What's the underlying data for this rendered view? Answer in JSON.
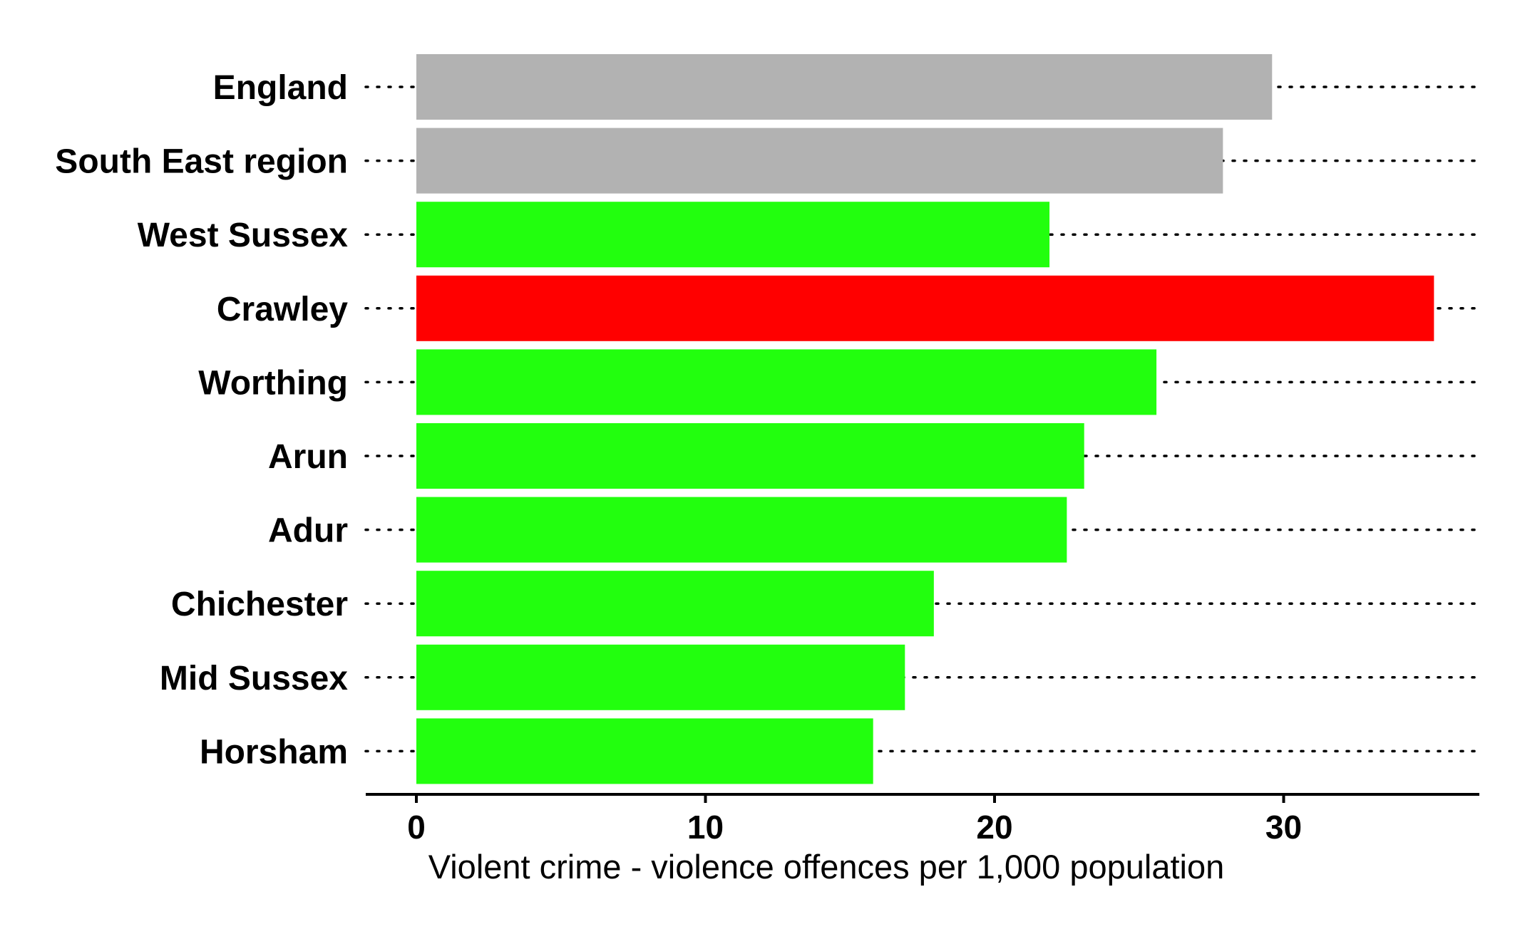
{
  "chart_data": {
    "type": "bar",
    "orientation": "horizontal",
    "categories": [
      "England",
      "South East region",
      "West Sussex",
      "Crawley",
      "Worthing",
      "Arun",
      "Adur",
      "Chichester",
      "Mid Sussex",
      "Horsham"
    ],
    "values": [
      29.6,
      27.9,
      21.9,
      35.2,
      25.6,
      23.1,
      22.5,
      17.9,
      16.9,
      15.8
    ],
    "colors": [
      "#b2b2b2",
      "#b2b2b2",
      "#22ff0e",
      "#ff0000",
      "#22ff0e",
      "#22ff0e",
      "#22ff0e",
      "#22ff0e",
      "#22ff0e",
      "#22ff0e"
    ],
    "xlabel": "Violent crime - violence offences per 1,000 population",
    "ylabel": "",
    "title": "",
    "xlim": [
      0,
      37
    ],
    "xticks": [
      0,
      10,
      20,
      30
    ],
    "xtick_labels": [
      "0",
      "10",
      "20",
      "30"
    ],
    "grid": "dotted guide lines from each category label across the full width"
  }
}
